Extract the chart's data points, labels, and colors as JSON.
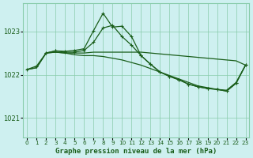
{
  "title": "Graphe pression niveau de la mer (hPa)",
  "background_color": "#cef0f0",
  "grid_color": "#88ccaa",
  "line_color": "#1a5e1a",
  "x_ticks": [
    0,
    1,
    2,
    3,
    4,
    5,
    6,
    7,
    8,
    9,
    10,
    11,
    12,
    13,
    14,
    15,
    16,
    17,
    18,
    19,
    20,
    21,
    22,
    23
  ],
  "y_ticks": [
    1021,
    1022,
    1023
  ],
  "ylim": [
    1020.55,
    1023.65
  ],
  "xlim": [
    -0.4,
    23.4
  ],
  "series1_x": [
    0,
    1,
    2,
    3,
    4,
    5,
    6,
    7,
    8,
    9,
    10,
    11,
    12,
    13,
    14,
    15,
    16,
    17,
    18,
    19,
    20,
    21,
    22,
    23
  ],
  "series1_y": [
    1022.12,
    1022.16,
    1022.5,
    1022.52,
    1022.5,
    1022.5,
    1022.5,
    1022.52,
    1022.52,
    1022.52,
    1022.52,
    1022.52,
    1022.52,
    1022.5,
    1022.48,
    1022.46,
    1022.44,
    1022.42,
    1022.4,
    1022.38,
    1022.36,
    1022.34,
    1022.32,
    1022.22
  ],
  "series2_x": [
    0,
    1,
    2,
    3,
    4,
    5,
    6,
    7,
    8,
    9,
    10,
    11,
    12,
    13,
    14,
    15,
    16,
    17,
    18,
    19,
    20,
    21,
    22,
    23
  ],
  "series2_y": [
    1022.12,
    1022.16,
    1022.5,
    1022.52,
    1022.5,
    1022.46,
    1022.44,
    1022.44,
    1022.42,
    1022.38,
    1022.34,
    1022.28,
    1022.22,
    1022.14,
    1022.06,
    1021.98,
    1021.9,
    1021.82,
    1021.74,
    1021.7,
    1021.66,
    1021.64,
    1021.82,
    1022.22
  ],
  "series3_x": [
    0,
    1,
    2,
    3,
    4,
    5,
    6,
    7,
    8,
    9,
    10,
    11,
    12,
    13,
    14,
    15,
    16,
    17,
    18,
    19,
    20,
    21,
    22,
    23
  ],
  "series3_y": [
    1022.12,
    1022.2,
    1022.5,
    1022.55,
    1022.52,
    1022.52,
    1022.56,
    1022.75,
    1023.08,
    1023.14,
    1022.88,
    1022.68,
    1022.44,
    1022.24,
    1022.06,
    1021.96,
    1021.88,
    1021.78,
    1021.72,
    1021.68,
    1021.66,
    1021.62,
    1021.8,
    1022.22
  ],
  "series4_x": [
    2,
    3,
    4,
    5,
    6,
    7,
    8,
    9,
    10,
    11,
    12,
    13,
    14,
    15,
    16,
    17,
    18,
    19,
    20,
    21,
    22,
    23
  ],
  "series4_y": [
    1022.5,
    1022.55,
    1022.54,
    1022.56,
    1022.6,
    1023.02,
    1023.42,
    1023.1,
    1023.12,
    1022.88,
    1022.44,
    1022.24,
    1022.06,
    1021.96,
    1021.88,
    1021.78,
    1021.72,
    1021.68,
    1021.66,
    1021.62,
    1021.8,
    1022.22
  ]
}
